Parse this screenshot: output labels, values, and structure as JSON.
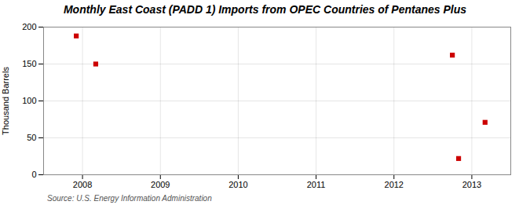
{
  "chart_data": {
    "type": "scatter",
    "title": "Monthly East Coast (PADD 1) Imports from OPEC Countries of Pentanes Plus",
    "ylabel": "Thousand Barrels",
    "source": "Source: U.S. Energy Information Administration",
    "x": [
      2007.92,
      2008.17,
      2012.75,
      2012.83,
      2013.17
    ],
    "values": [
      188,
      150,
      162,
      22,
      71
    ],
    "color": "#cc0000",
    "marker": "square",
    "xlim": [
      2007.5,
      2013.5
    ],
    "ylim": [
      0,
      200
    ],
    "xticks": [
      2008,
      2009,
      2010,
      2011,
      2012,
      2013
    ],
    "yticks": [
      0,
      50,
      100,
      150,
      200
    ],
    "grid": true
  }
}
